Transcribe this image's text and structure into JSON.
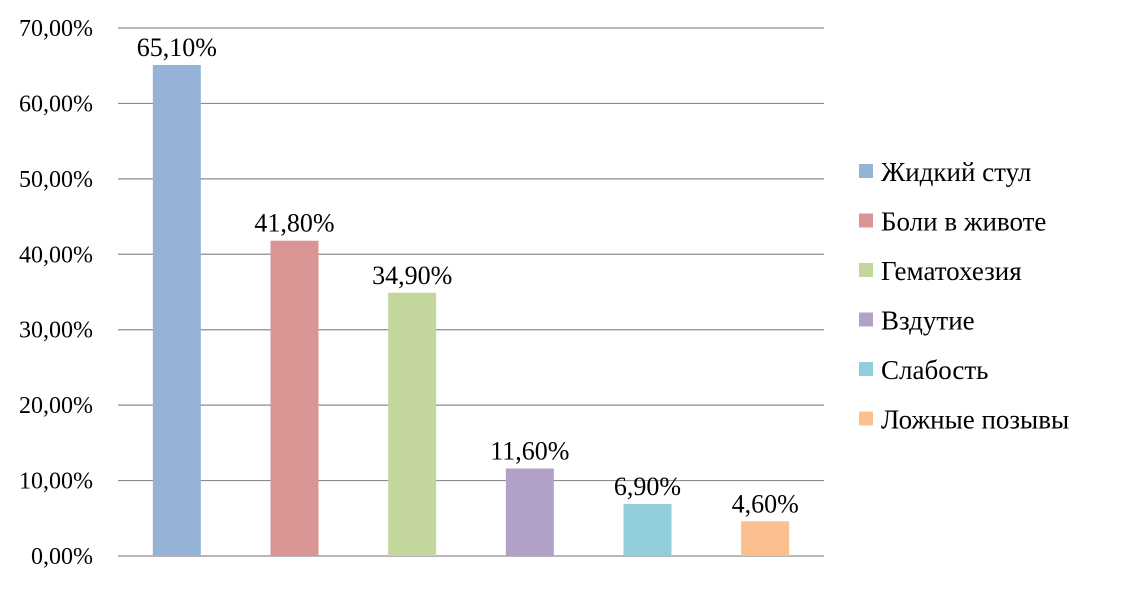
{
  "chart_data": {
    "type": "bar",
    "categories": [
      "Жидкий стул",
      "Боли в животе",
      "Гематохезия",
      "Вздутие",
      "Слабость",
      "Ложные позывы"
    ],
    "values": [
      65.1,
      41.8,
      34.9,
      11.6,
      6.9,
      4.6
    ],
    "data_labels": [
      "65,10%",
      "41,80%",
      "34,90%",
      "11,60%",
      "6,90%",
      "4,60%"
    ],
    "colors": [
      "#95b3d7",
      "#d99594",
      "#c3d69b",
      "#b2a1c7",
      "#92cddc",
      "#fac090"
    ],
    "ylim": [
      0,
      70
    ],
    "yticks": [
      0,
      10,
      20,
      30,
      40,
      50,
      60,
      70
    ],
    "ytick_labels": [
      "0,00%",
      "10,00%",
      "20,00%",
      "30,00%",
      "40,00%",
      "50,00%",
      "60,00%",
      "70,00%"
    ],
    "grid": true,
    "legend_position": "right",
    "title": "",
    "xlabel": "",
    "ylabel": ""
  }
}
